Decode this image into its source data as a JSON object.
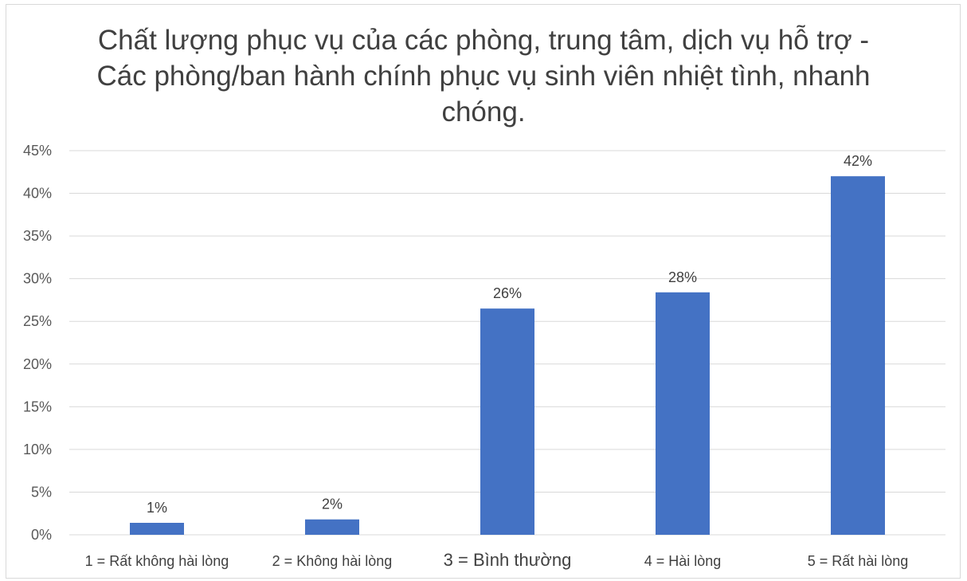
{
  "chart_data": {
    "type": "bar",
    "title": "Chất lượng phục vụ của các phòng, trung tâm, dịch vụ hỗ trợ - Các phòng/ban hành chính phục vụ sinh viên nhiệt tình, nhanh chóng.",
    "categories": [
      "1 = Rất không hài lòng",
      "2 = Không hài lòng",
      "3 = Bình thường",
      "4 = Hài lòng",
      "5 = Rất hài lòng"
    ],
    "values": [
      1.4,
      1.8,
      26.5,
      28.4,
      42.0
    ],
    "data_labels": [
      "1%",
      "2%",
      "26%",
      "28%",
      "42%"
    ],
    "ylim": [
      0,
      45
    ],
    "yticks": [
      0,
      5,
      10,
      15,
      20,
      25,
      30,
      35,
      40,
      45
    ],
    "ytick_labels": [
      "0%",
      "5%",
      "10%",
      "15%",
      "20%",
      "25%",
      "30%",
      "35%",
      "40%",
      "45%"
    ],
    "xlabel": "",
    "ylabel": "",
    "grid": true,
    "legend": "none",
    "bar_color": "#4472c4",
    "grid_color": "#d9d9d9"
  }
}
